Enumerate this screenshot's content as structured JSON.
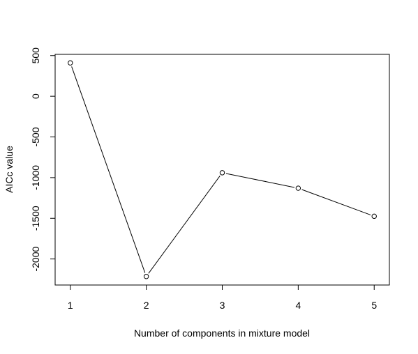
{
  "chart_data": {
    "type": "line",
    "title": "",
    "xlabel": "Number of components in mixture model",
    "ylabel": "AICc value",
    "x": [
      1,
      2,
      3,
      4,
      5
    ],
    "values": [
      410,
      -2215,
      -940,
      -1130,
      -1475
    ],
    "xlim": [
      0.8,
      5.2
    ],
    "ylim": [
      -2320,
      515
    ],
    "x_ticks": [
      "1",
      "2",
      "3",
      "4",
      "5"
    ],
    "y_ticks": [
      "500",
      "0",
      "-500",
      "-1000",
      "-1500",
      "-2000"
    ],
    "y_tick_values": [
      500,
      0,
      -500,
      -1000,
      -1500,
      -2000
    ],
    "markers": "open-circle",
    "line_color": "#000000",
    "grid": false,
    "legend": "none"
  }
}
